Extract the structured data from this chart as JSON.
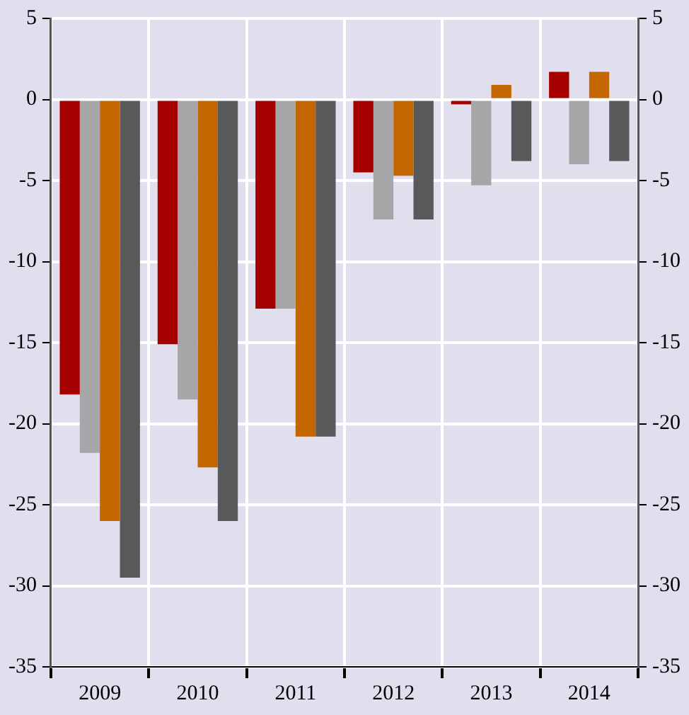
{
  "chart_data": {
    "type": "bar",
    "categories": [
      "2009",
      "2010",
      "2011",
      "2012",
      "2013",
      "2014"
    ],
    "series": [
      {
        "color": "#a50000",
        "values": [
          -18.2,
          -15.1,
          -12.9,
          -4.5,
          -0.3,
          1.7
        ]
      },
      {
        "color": "#a6a6a9",
        "values": [
          -21.8,
          -18.5,
          -12.9,
          -7.4,
          -5.3,
          -4.0
        ]
      },
      {
        "color": "#c46600",
        "values": [
          -26.0,
          -22.7,
          -20.8,
          -4.7,
          0.9,
          1.7
        ]
      },
      {
        "color": "#58595b",
        "values": [
          -29.5,
          -26.0,
          -20.8,
          -7.4,
          -3.8,
          -3.8
        ]
      }
    ],
    "ylim": [
      -35,
      5
    ],
    "yticks": [
      -35,
      -30,
      -25,
      -20,
      -15,
      -10,
      -5,
      0,
      5
    ],
    "y2lim": [
      -35,
      5
    ],
    "y2ticks": [
      -35,
      -30,
      -25,
      -20,
      -15,
      -10,
      -5,
      0,
      5
    ],
    "grid": true,
    "legend": false
  }
}
